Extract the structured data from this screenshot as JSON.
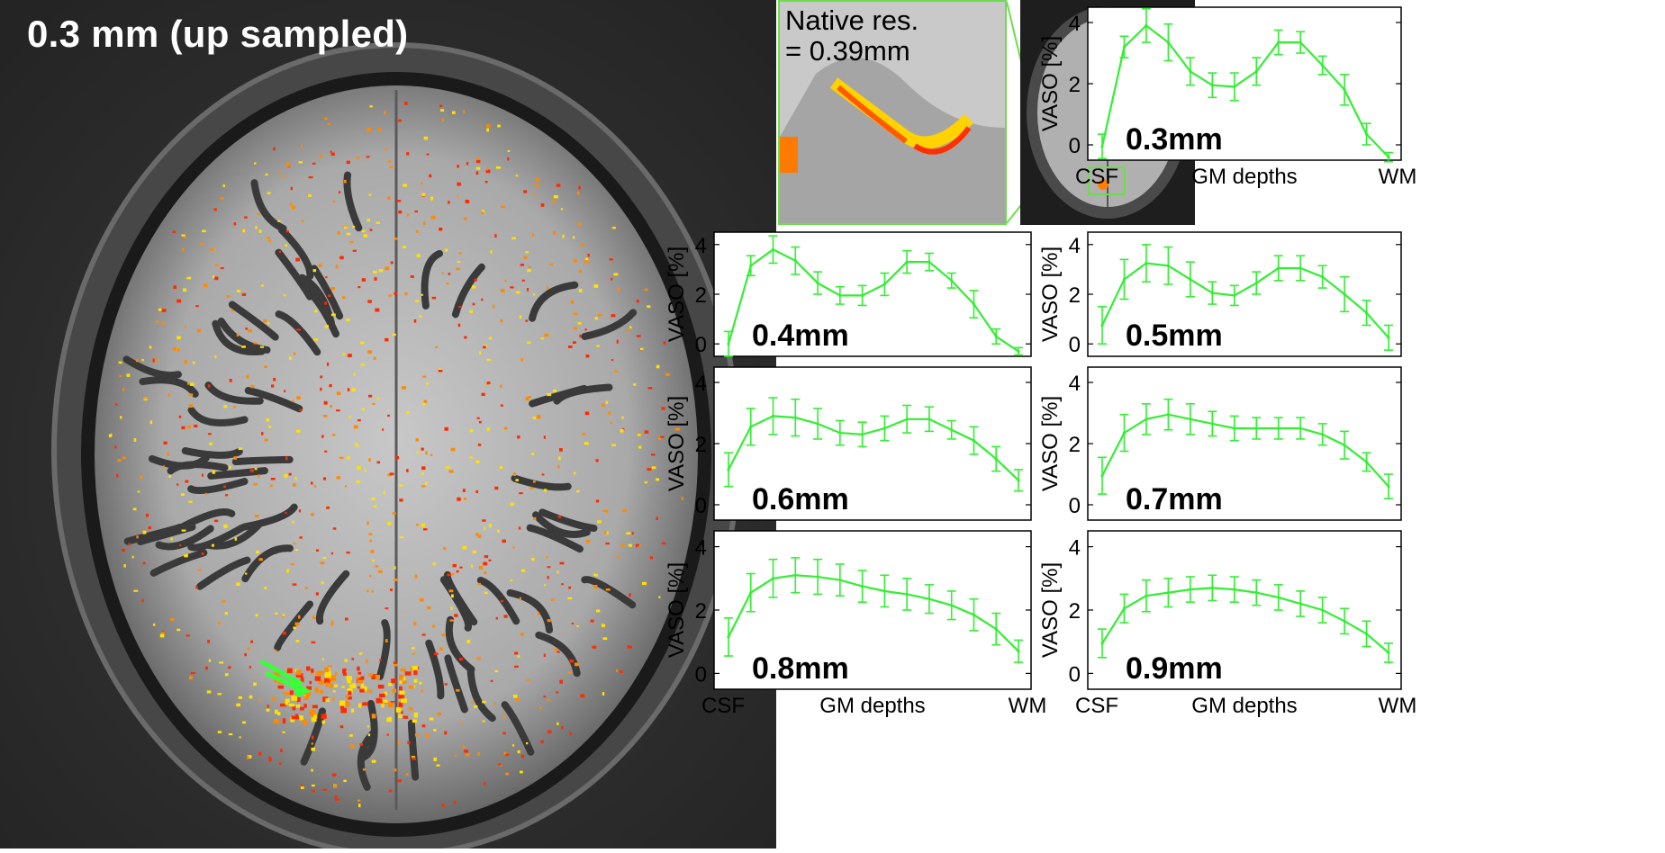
{
  "brain_image": {
    "title": "0.3 mm (up sampled)",
    "inset_label_line1": "Native res.",
    "inset_label_line2": "= 0.39mm",
    "activation_colors": [
      "#ff2a00",
      "#ff8a00",
      "#ffe000"
    ],
    "arrow_color": "#39ff3a"
  },
  "chart_data": [
    {
      "type": "line",
      "label": "0.3mm",
      "ylabel": "VASO  [%]",
      "xlabels": [
        "CSF",
        "GM depths",
        "WM"
      ],
      "ylim": [
        -0.5,
        4.5
      ],
      "yticks": [
        0,
        2,
        4
      ],
      "color": "#33ee33",
      "values": [
        -0.05,
        3.2,
        3.9,
        3.35,
        2.4,
        1.95,
        1.9,
        2.4,
        3.35,
        3.35,
        2.6,
        1.8,
        0.35,
        -0.4
      ],
      "errors": [
        0.4,
        0.35,
        0.55,
        0.6,
        0.45,
        0.4,
        0.45,
        0.45,
        0.4,
        0.35,
        0.3,
        0.5,
        0.35,
        0.15
      ]
    },
    {
      "type": "line",
      "label": "0.4mm",
      "ylabel": "VASO  [%]",
      "xlabels": [
        "CSF",
        "GM depths",
        "WM"
      ],
      "ylim": [
        -0.5,
        4.5
      ],
      "yticks": [
        0,
        2,
        4
      ],
      "color": "#33ee33",
      "values": [
        0.0,
        3.15,
        3.8,
        3.35,
        2.45,
        1.95,
        1.95,
        2.4,
        3.3,
        3.3,
        2.55,
        1.6,
        0.3,
        -0.3
      ],
      "errors": [
        0.5,
        0.4,
        0.55,
        0.55,
        0.45,
        0.35,
        0.4,
        0.45,
        0.45,
        0.35,
        0.3,
        0.55,
        0.3,
        0.15
      ]
    },
    {
      "type": "line",
      "label": "0.5mm",
      "ylabel": "VASO  [%]",
      "xlabels": [
        "CSF",
        "GM depths",
        "WM"
      ],
      "ylim": [
        -0.5,
        4.5
      ],
      "yticks": [
        0,
        2,
        4
      ],
      "color": "#33ee33",
      "values": [
        0.75,
        2.6,
        3.25,
        3.15,
        2.6,
        2.05,
        1.95,
        2.45,
        3.05,
        3.05,
        2.7,
        2.0,
        1.25,
        0.25
      ],
      "errors": [
        0.75,
        0.8,
        0.75,
        0.75,
        0.7,
        0.45,
        0.4,
        0.45,
        0.5,
        0.5,
        0.45,
        0.7,
        0.5,
        0.5
      ]
    },
    {
      "type": "line",
      "label": "0.6mm",
      "ylabel": "VASO  [%]",
      "xlabels": [
        "CSF",
        "GM depths",
        "WM"
      ],
      "ylim": [
        -0.5,
        4.5
      ],
      "yticks": [
        0,
        2,
        4
      ],
      "color": "#33ee33",
      "values": [
        1.15,
        2.55,
        2.9,
        2.85,
        2.65,
        2.35,
        2.3,
        2.5,
        2.8,
        2.8,
        2.45,
        2.1,
        1.5,
        0.8
      ],
      "errors": [
        0.55,
        0.6,
        0.6,
        0.6,
        0.5,
        0.4,
        0.4,
        0.4,
        0.45,
        0.4,
        0.3,
        0.45,
        0.4,
        0.35
      ]
    },
    {
      "type": "line",
      "label": "0.7mm",
      "ylabel": "VASO  [%]",
      "xlabels": [
        "CSF",
        "GM depths",
        "WM"
      ],
      "ylim": [
        -0.5,
        4.5
      ],
      "yticks": [
        0,
        2,
        4
      ],
      "color": "#33ee33",
      "values": [
        0.95,
        2.35,
        2.8,
        2.95,
        2.8,
        2.65,
        2.5,
        2.5,
        2.5,
        2.5,
        2.3,
        1.95,
        1.4,
        0.6
      ],
      "errors": [
        0.6,
        0.6,
        0.5,
        0.5,
        0.5,
        0.4,
        0.4,
        0.35,
        0.35,
        0.35,
        0.35,
        0.45,
        0.3,
        0.4
      ]
    },
    {
      "type": "line",
      "label": "0.8mm",
      "ylabel": "VASO  [%]",
      "xlabels": [
        "CSF",
        "GM depths",
        "WM"
      ],
      "ylim": [
        -0.5,
        4.5
      ],
      "yticks": [
        0,
        2,
        4
      ],
      "color": "#33ee33",
      "values": [
        1.15,
        2.55,
        3.0,
        3.1,
        3.05,
        2.95,
        2.75,
        2.6,
        2.5,
        2.35,
        2.15,
        1.85,
        1.4,
        0.7
      ],
      "errors": [
        0.6,
        0.6,
        0.6,
        0.55,
        0.55,
        0.5,
        0.5,
        0.5,
        0.5,
        0.45,
        0.45,
        0.5,
        0.5,
        0.35
      ]
    },
    {
      "type": "line",
      "label": "0.9mm",
      "ylabel": "VASO  [%]",
      "xlabels": [
        "CSF",
        "GM depths",
        "WM"
      ],
      "ylim": [
        -0.5,
        4.5
      ],
      "yticks": [
        0,
        2,
        4
      ],
      "color": "#33ee33",
      "values": [
        0.95,
        2.05,
        2.45,
        2.55,
        2.65,
        2.7,
        2.65,
        2.55,
        2.4,
        2.2,
        2.0,
        1.65,
        1.25,
        0.65
      ],
      "errors": [
        0.45,
        0.45,
        0.5,
        0.45,
        0.4,
        0.4,
        0.4,
        0.4,
        0.4,
        0.4,
        0.4,
        0.4,
        0.4,
        0.3
      ]
    }
  ]
}
